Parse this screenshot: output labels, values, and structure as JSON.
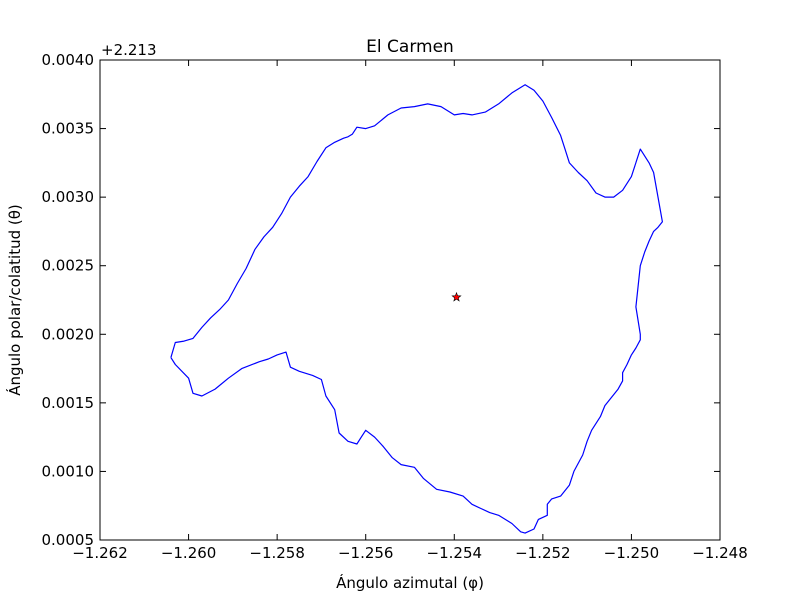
{
  "chart_data": {
    "type": "line",
    "title": "El Carmen",
    "xlabel": "Ángulo azimutal (φ)",
    "ylabel": "Ángulo polar/colatitud (θ)",
    "y_offset_label": "+2.213",
    "xlim": [
      -1.262,
      -1.248
    ],
    "ylim": [
      0.004,
      0.0005
    ],
    "y_inverted": true,
    "xticks": [
      -1.262,
      -1.26,
      -1.258,
      -1.256,
      -1.254,
      -1.252,
      -1.25,
      -1.248
    ],
    "xtick_labels": [
      "−1.262",
      "−1.260",
      "−1.258",
      "−1.256",
      "−1.254",
      "−1.252",
      "−1.250",
      "−1.248"
    ],
    "yticks": [
      0.0005,
      0.001,
      0.0015,
      0.002,
      0.0025,
      0.003,
      0.0035,
      0.004
    ],
    "ytick_labels": [
      "0.0005",
      "0.0010",
      "0.0015",
      "0.0020",
      "0.0025",
      "0.0030",
      "0.0035",
      "0.0040"
    ],
    "grid": false,
    "series": [
      {
        "kind": "boundary",
        "color": "#0000ff",
        "x": [
          -1.2604,
          -1.2603,
          -1.26,
          -1.2599,
          -1.2597,
          -1.2594,
          -1.2591,
          -1.2588,
          -1.2584,
          -1.2582,
          -1.258,
          -1.2578,
          -1.2577,
          -1.2575,
          -1.2572,
          -1.257,
          -1.2569,
          -1.2567,
          -1.2566,
          -1.2564,
          -1.2562,
          -1.2561,
          -1.256,
          -1.2558,
          -1.2556,
          -1.2554,
          -1.2552,
          -1.2549,
          -1.2547,
          -1.2544,
          -1.2541,
          -1.2538,
          -1.2536,
          -1.2534,
          -1.2532,
          -1.253,
          -1.2527,
          -1.2525,
          -1.2524,
          -1.2522,
          -1.2521,
          -1.2519,
          -1.2519,
          -1.2518,
          -1.2516,
          -1.2514,
          -1.2513,
          -1.2511,
          -1.251,
          -1.2509,
          -1.2507,
          -1.2506,
          -1.2505,
          -1.2503,
          -1.2502,
          -1.2502,
          -1.2501,
          -1.25,
          -1.2499,
          -1.2498,
          -1.2498,
          -1.2499,
          -1.2498,
          -1.2497,
          -1.2496,
          -1.2495,
          -1.2494,
          -1.2493,
          -1.2494,
          -1.2495,
          -1.2496,
          -1.2498,
          -1.25,
          -1.2502,
          -1.2504,
          -1.2506,
          -1.2508,
          -1.251,
          -1.2512,
          -1.2514,
          -1.2515,
          -1.2516,
          -1.2518,
          -1.252,
          -1.2522,
          -1.2524,
          -1.2527,
          -1.253,
          -1.2533,
          -1.2536,
          -1.2538,
          -1.254,
          -1.2543,
          -1.2546,
          -1.2549,
          -1.2552,
          -1.2555,
          -1.2558,
          -1.256,
          -1.2562,
          -1.2563,
          -1.2564,
          -1.2565,
          -1.2567,
          -1.2569,
          -1.2571,
          -1.2573,
          -1.2575,
          -1.2577,
          -1.2579,
          -1.2581,
          -1.2583,
          -1.2585,
          -1.2587,
          -1.2589,
          -1.2591,
          -1.2593,
          -1.2595,
          -1.2597,
          -1.2599,
          -1.2601,
          -1.2603,
          -1.2604
        ],
        "y": [
          0.00183,
          0.00178,
          0.00168,
          0.00157,
          0.00155,
          0.0016,
          0.00168,
          0.00175,
          0.0018,
          0.00182,
          0.00185,
          0.00187,
          0.00176,
          0.00173,
          0.0017,
          0.00167,
          0.00155,
          0.00145,
          0.00128,
          0.00122,
          0.0012,
          0.00125,
          0.0013,
          0.00125,
          0.00118,
          0.0011,
          0.00105,
          0.00103,
          0.00095,
          0.00087,
          0.00085,
          0.00082,
          0.00076,
          0.00073,
          0.0007,
          0.00068,
          0.00062,
          0.00056,
          0.00055,
          0.00058,
          0.00065,
          0.00068,
          0.00076,
          0.0008,
          0.00082,
          0.0009,
          0.001,
          0.00112,
          0.00122,
          0.0013,
          0.0014,
          0.00148,
          0.00152,
          0.0016,
          0.00166,
          0.00172,
          0.00178,
          0.00185,
          0.0019,
          0.00196,
          0.002,
          0.0022,
          0.0025,
          0.0026,
          0.00268,
          0.00275,
          0.00278,
          0.00282,
          0.003,
          0.00318,
          0.00325,
          0.00335,
          0.00315,
          0.00305,
          0.003,
          0.003,
          0.00303,
          0.00312,
          0.00318,
          0.00325,
          0.00335,
          0.00345,
          0.00358,
          0.0037,
          0.00378,
          0.00382,
          0.00376,
          0.00368,
          0.00362,
          0.0036,
          0.00361,
          0.0036,
          0.00366,
          0.00368,
          0.00366,
          0.00365,
          0.0036,
          0.00352,
          0.0035,
          0.00351,
          0.00346,
          0.00344,
          0.00343,
          0.0034,
          0.00336,
          0.00326,
          0.00315,
          0.00308,
          0.003,
          0.00288,
          0.00278,
          0.00271,
          0.00262,
          0.00248,
          0.00237,
          0.00225,
          0.00218,
          0.00212,
          0.00205,
          0.00197,
          0.00195,
          0.00194,
          0.00183
        ]
      },
      {
        "kind": "marker",
        "marker": "star",
        "color": "#ff0000",
        "x": [
          -1.25395
        ],
        "y": [
          0.00227
        ]
      }
    ]
  }
}
